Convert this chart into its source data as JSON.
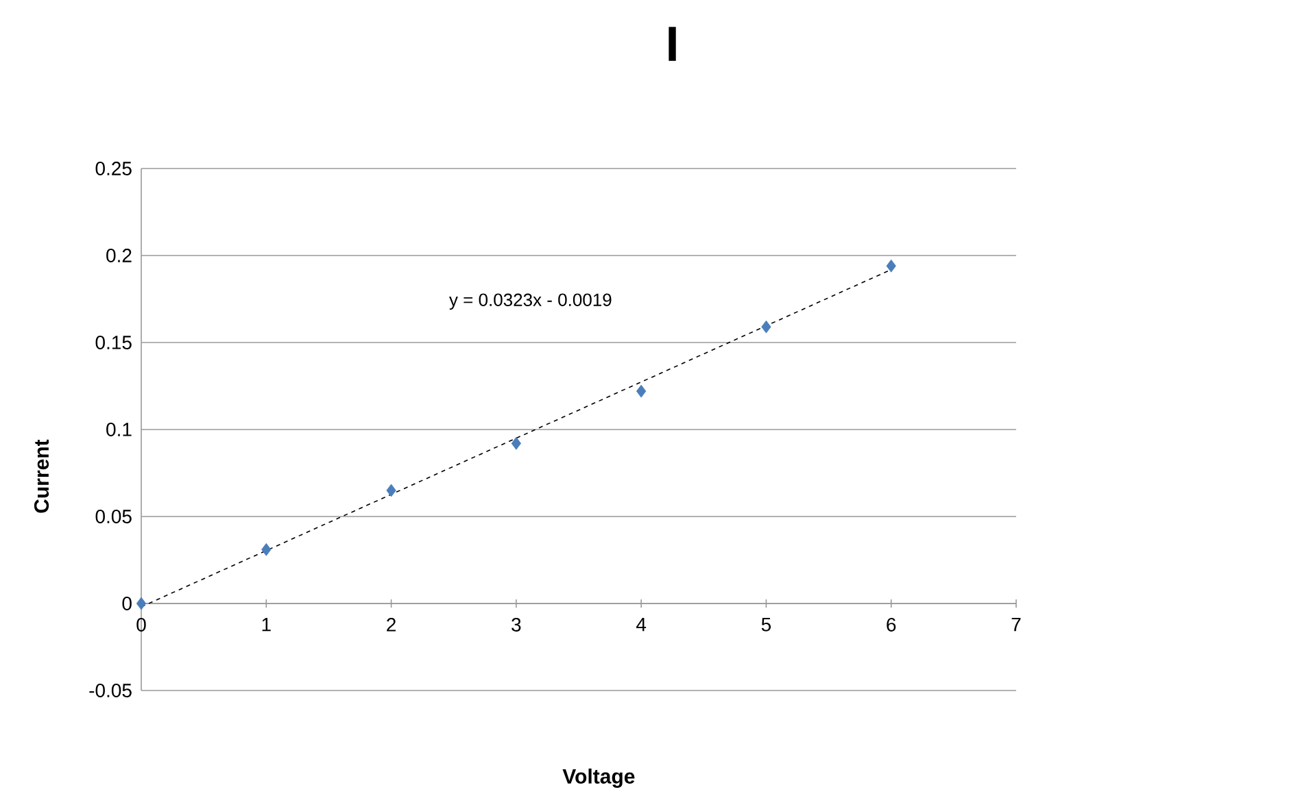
{
  "chart_data": {
    "type": "scatter",
    "title": "I",
    "xlabel": "Voltage",
    "ylabel": "Current",
    "annotations": [
      "y = 0.0323x - 0.0019"
    ],
    "xlim": [
      0,
      7
    ],
    "xticks": [
      0,
      1,
      2,
      3,
      4,
      5,
      6,
      7
    ],
    "ylim": [
      -0.05,
      0.25
    ],
    "yticks": [
      -0.05,
      0,
      0.05,
      0.1,
      0.15,
      0.2,
      0.25
    ],
    "grid": "y",
    "series": [
      {
        "color": "#4a7ebb",
        "marker": "diamond",
        "x": [
          0,
          1,
          2,
          3,
          4,
          5,
          6
        ],
        "values": [
          0,
          0.031,
          0.065,
          0.092,
          0.122,
          0.159,
          0.194
        ]
      },
      {
        "type": "line",
        "color": "#000000",
        "line_style": "dashed",
        "marker": "none",
        "x": [
          0,
          6
        ],
        "values": [
          -0.0019,
          0.1919
        ]
      }
    ]
  }
}
